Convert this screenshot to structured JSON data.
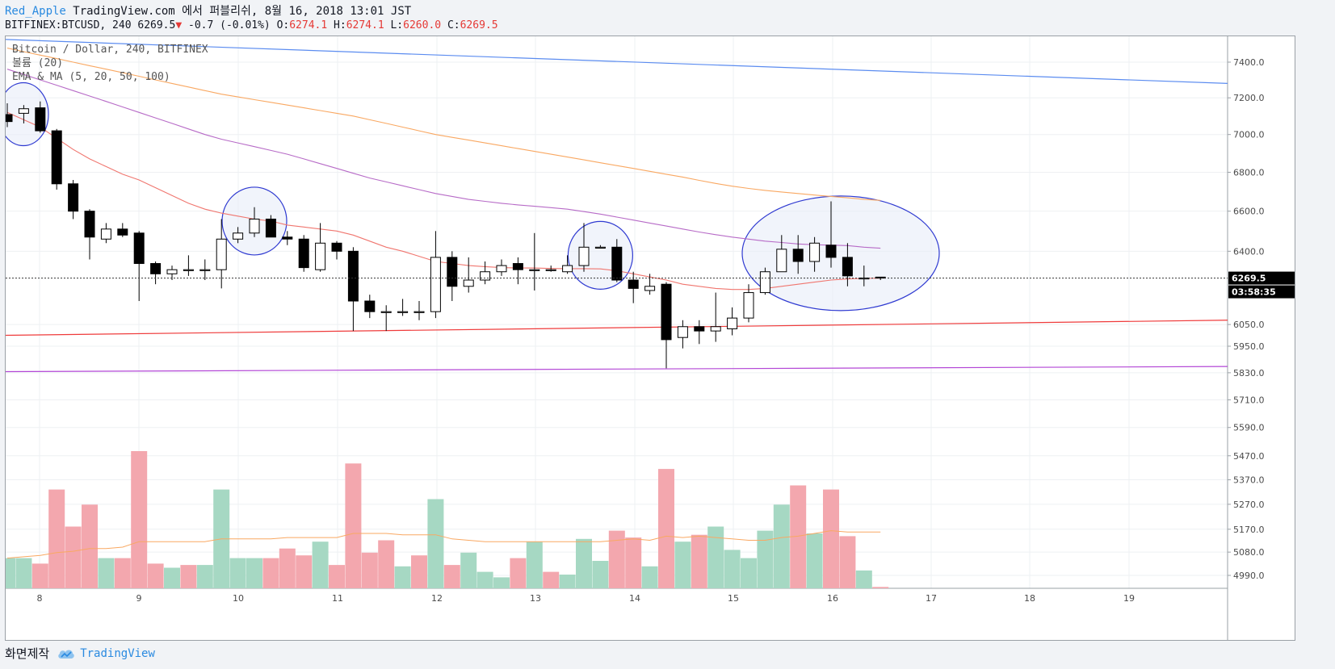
{
  "header": {
    "author": "Red_Apple",
    "published": "TradingView.com 에서 퍼블리쉬, 8월 16, 2018 13:01 JST",
    "symbol": "BITFINEX:BTCUSD, 240",
    "last": "6269.5",
    "change_arrow": "▼",
    "change": "-0.7 (-0.01%)",
    "o_label": "O:",
    "o_value": "6274.1",
    "h_label": "H:",
    "h_value": "6274.1",
    "l_label": "L:",
    "l_value": "6260.0",
    "c_label": "C:",
    "c_value": "6269.5"
  },
  "legend": {
    "series": "Bitcoin / Dollar, 240, BITFINEX",
    "volume": "볼륨 (20)",
    "ema": "EMA & MA (5, 20, 50, 100)"
  },
  "footer": {
    "made_by": "화면제작",
    "brand": "TradingView",
    "brand_icon": "tradingview-cloud-icon"
  },
  "colors": {
    "up_body": "#ffffff",
    "down_body": "#000000",
    "vol_up": "#a6d8c3",
    "vol_down": "#f3a7ae",
    "ema20": "#f0766f",
    "ma50": "#b76bc7",
    "ma100": "#f9a862",
    "trend_blue": "#5b8cf0",
    "trend_red": "#ef3b3b",
    "trend_purple": "#b347d6",
    "circle": "#2f3ad1",
    "circle_fill": "#e8ecf8",
    "last_price_tag": "#000000",
    "countdown_tag": "#000000",
    "vol_ma": "#f9a862"
  },
  "chart_data": {
    "type": "candlestick",
    "interval": "240",
    "price_axis": {
      "ticks": [
        4990.0,
        5080.0,
        5170.0,
        5270.0,
        5370.0,
        5470.0,
        5590.0,
        5710.0,
        5830.0,
        5950.0,
        6050.0,
        6400.0,
        6600.0,
        6800.0,
        7000.0,
        7200.0,
        7400.0
      ],
      "tick_labels": [
        "4990.0",
        "5080.0",
        "5170.0",
        "5270.0",
        "5370.0",
        "5470.0",
        "5590.0",
        "5710.0",
        "5830.0",
        "5950.0",
        "6050.0",
        "6400.0",
        "6600.0",
        "6800.0",
        "7000.0",
        "7200.0",
        "7400.0"
      ],
      "scale": "log"
    },
    "x_axis": {
      "ticks": [
        "8",
        "9",
        "10",
        "11",
        "12",
        "13",
        "14",
        "15",
        "16",
        "17",
        "18",
        "19"
      ]
    },
    "last_price": 6269.5,
    "last_price_label": "6269.5",
    "countdown": "03:58:35",
    "candles": [
      [
        7108,
        7170,
        7040,
        7070
      ],
      [
        7115,
        7160,
        7060,
        7140
      ],
      [
        7145,
        7180,
        7010,
        7020
      ],
      [
        7020,
        7030,
        6710,
        6740
      ],
      [
        6740,
        6760,
        6560,
        6600
      ],
      [
        6600,
        6610,
        6360,
        6470
      ],
      [
        6460,
        6540,
        6440,
        6510
      ],
      [
        6510,
        6540,
        6470,
        6480
      ],
      [
        6490,
        6500,
        6160,
        6340
      ],
      [
        6340,
        6350,
        6240,
        6290
      ],
      [
        6290,
        6330,
        6260,
        6310
      ],
      [
        6310,
        6380,
        6280,
        6310
      ],
      [
        6310,
        6360,
        6260,
        6310
      ],
      [
        6310,
        6560,
        6220,
        6460
      ],
      [
        6460,
        6520,
        6440,
        6490
      ],
      [
        6490,
        6620,
        6470,
        6560
      ],
      [
        6560,
        6580,
        6470,
        6470
      ],
      [
        6470,
        6500,
        6430,
        6460
      ],
      [
        6460,
        6480,
        6300,
        6320
      ],
      [
        6310,
        6540,
        6300,
        6440
      ],
      [
        6440,
        6450,
        6360,
        6400
      ],
      [
        6400,
        6420,
        6020,
        6160
      ],
      [
        6160,
        6190,
        6080,
        6110
      ],
      [
        6110,
        6140,
        6020,
        6110
      ],
      [
        6110,
        6170,
        6090,
        6110
      ],
      [
        6110,
        6160,
        6070,
        6110
      ],
      [
        6110,
        6500,
        6080,
        6370
      ],
      [
        6370,
        6400,
        6160,
        6230
      ],
      [
        6230,
        6370,
        6200,
        6260
      ],
      [
        6260,
        6350,
        6240,
        6300
      ],
      [
        6300,
        6360,
        6280,
        6330
      ],
      [
        6340,
        6370,
        6240,
        6310
      ],
      [
        6310,
        6490,
        6210,
        6310
      ],
      [
        6310,
        6330,
        6300,
        6310
      ],
      [
        6300,
        6380,
        6290,
        6330
      ],
      [
        6330,
        6540,
        6300,
        6420
      ],
      [
        6420,
        6430,
        6420,
        6420
      ],
      [
        6420,
        6460,
        6250,
        6260
      ],
      [
        6260,
        6300,
        6150,
        6220
      ],
      [
        6210,
        6290,
        6190,
        6230
      ],
      [
        6240,
        6250,
        5850,
        5980
      ],
      [
        5990,
        6070,
        5940,
        6040
      ],
      [
        6040,
        6070,
        5960,
        6020
      ],
      [
        6020,
        6200,
        5970,
        6040
      ],
      [
        6030,
        6130,
        6000,
        6080
      ],
      [
        6080,
        6240,
        6060,
        6200
      ],
      [
        6200,
        6320,
        6190,
        6300
      ],
      [
        6300,
        6480,
        6300,
        6410
      ],
      [
        6410,
        6480,
        6290,
        6350
      ],
      [
        6350,
        6470,
        6300,
        6440
      ],
      [
        6430,
        6650,
        6320,
        6370
      ],
      [
        6370,
        6440,
        6230,
        6280
      ],
      [
        6270,
        6330,
        6230,
        6270
      ],
      [
        6274.1,
        6274.1,
        6260.0,
        6269.5
      ]
    ],
    "volume": [
      {
        "v": 0.22,
        "up": true
      },
      {
        "v": 0.22,
        "up": true
      },
      {
        "v": 0.18,
        "up": false
      },
      {
        "v": 0.72,
        "up": false
      },
      {
        "v": 0.45,
        "up": false
      },
      {
        "v": 0.61,
        "up": false
      },
      {
        "v": 0.22,
        "up": true
      },
      {
        "v": 0.22,
        "up": false
      },
      {
        "v": 1.0,
        "up": false
      },
      {
        "v": 0.18,
        "up": false
      },
      {
        "v": 0.15,
        "up": true
      },
      {
        "v": 0.17,
        "up": false
      },
      {
        "v": 0.17,
        "up": true
      },
      {
        "v": 0.72,
        "up": true
      },
      {
        "v": 0.22,
        "up": true
      },
      {
        "v": 0.22,
        "up": true
      },
      {
        "v": 0.22,
        "up": false
      },
      {
        "v": 0.29,
        "up": false
      },
      {
        "v": 0.24,
        "up": false
      },
      {
        "v": 0.34,
        "up": true
      },
      {
        "v": 0.17,
        "up": false
      },
      {
        "v": 0.91,
        "up": false
      },
      {
        "v": 0.26,
        "up": false
      },
      {
        "v": 0.35,
        "up": false
      },
      {
        "v": 0.16,
        "up": true
      },
      {
        "v": 0.24,
        "up": false
      },
      {
        "v": 0.65,
        "up": true
      },
      {
        "v": 0.17,
        "up": false
      },
      {
        "v": 0.26,
        "up": true
      },
      {
        "v": 0.12,
        "up": true
      },
      {
        "v": 0.08,
        "up": true
      },
      {
        "v": 0.22,
        "up": false
      },
      {
        "v": 0.34,
        "up": true
      },
      {
        "v": 0.12,
        "up": false
      },
      {
        "v": 0.1,
        "up": true
      },
      {
        "v": 0.36,
        "up": true
      },
      {
        "v": 0.2,
        "up": true
      },
      {
        "v": 0.42,
        "up": false
      },
      {
        "v": 0.37,
        "up": false
      },
      {
        "v": 0.16,
        "up": true
      },
      {
        "v": 0.87,
        "up": false
      },
      {
        "v": 0.34,
        "up": true
      },
      {
        "v": 0.39,
        "up": false
      },
      {
        "v": 0.45,
        "up": true
      },
      {
        "v": 0.28,
        "up": true
      },
      {
        "v": 0.22,
        "up": true
      },
      {
        "v": 0.42,
        "up": true
      },
      {
        "v": 0.61,
        "up": true
      },
      {
        "v": 0.75,
        "up": false
      },
      {
        "v": 0.4,
        "up": true
      },
      {
        "v": 0.72,
        "up": false
      },
      {
        "v": 0.38,
        "up": false
      },
      {
        "v": 0.13,
        "up": true
      },
      {
        "v": 0.01,
        "up": false
      }
    ],
    "ema20": [
      7120,
      7080,
      7040,
      6980,
      6920,
      6870,
      6830,
      6790,
      6760,
      6720,
      6680,
      6640,
      6610,
      6590,
      6575,
      6560,
      6550,
      6530,
      6520,
      6510,
      6500,
      6480,
      6450,
      6420,
      6400,
      6375,
      6350,
      6340,
      6330,
      6325,
      6320,
      6318,
      6318,
      6316,
      6315,
      6315,
      6314,
      6305,
      6290,
      6275,
      6260,
      6240,
      6230,
      6220,
      6215,
      6215,
      6220,
      6230,
      6240,
      6250,
      6260,
      6265,
      6268,
      6269
    ],
    "ma50": [
      7360,
      7330,
      7300,
      7270,
      7240,
      7210,
      7180,
      7150,
      7120,
      7090,
      7060,
      7030,
      7000,
      6975,
      6955,
      6935,
      6915,
      6895,
      6870,
      6845,
      6820,
      6795,
      6770,
      6750,
      6730,
      6710,
      6690,
      6675,
      6660,
      6650,
      6640,
      6632,
      6625,
      6618,
      6610,
      6598,
      6585,
      6570,
      6555,
      6540,
      6525,
      6510,
      6495,
      6482,
      6470,
      6460,
      6450,
      6443,
      6436,
      6432,
      6430,
      6428,
      6420,
      6415
    ],
    "ma100": [
      7480,
      7460,
      7440,
      7420,
      7400,
      7380,
      7360,
      7340,
      7320,
      7300,
      7280,
      7260,
      7240,
      7220,
      7205,
      7190,
      7175,
      7160,
      7145,
      7130,
      7115,
      7100,
      7080,
      7060,
      7040,
      7020,
      7000,
      6985,
      6970,
      6955,
      6940,
      6925,
      6910,
      6895,
      6880,
      6865,
      6850,
      6835,
      6820,
      6805,
      6790,
      6775,
      6758,
      6742,
      6728,
      6716,
      6706,
      6698,
      6690,
      6682,
      6675,
      6668,
      6660,
      6655
    ],
    "vol_ma": [
      0.22,
      0.23,
      0.24,
      0.26,
      0.27,
      0.29,
      0.29,
      0.3,
      0.34,
      0.34,
      0.34,
      0.34,
      0.34,
      0.36,
      0.36,
      0.36,
      0.36,
      0.37,
      0.37,
      0.37,
      0.37,
      0.4,
      0.4,
      0.4,
      0.39,
      0.39,
      0.39,
      0.36,
      0.35,
      0.34,
      0.34,
      0.34,
      0.34,
      0.34,
      0.34,
      0.34,
      0.34,
      0.35,
      0.36,
      0.35,
      0.38,
      0.37,
      0.38,
      0.37,
      0.36,
      0.35,
      0.35,
      0.37,
      0.38,
      0.4,
      0.42,
      0.41,
      0.41,
      0.41
    ],
    "trendlines": [
      {
        "name": "upper-blue",
        "from": [
          -1,
          7530
        ],
        "to": [
          73,
          7280
        ]
      },
      {
        "name": "red-support",
        "from": [
          -1,
          6000
        ],
        "to": [
          73,
          6070
        ]
      },
      {
        "name": "purple-support",
        "from": [
          -1,
          5835
        ],
        "to": [
          73,
          5858
        ]
      }
    ],
    "highlight_circles": [
      {
        "center_candle": 1,
        "center_price": 7110
      },
      {
        "center_candle": 15,
        "center_price": 6550
      },
      {
        "center_candle": 36,
        "center_price": 6380
      },
      {
        "center_candle": 50,
        "center_price": 6390
      }
    ]
  }
}
